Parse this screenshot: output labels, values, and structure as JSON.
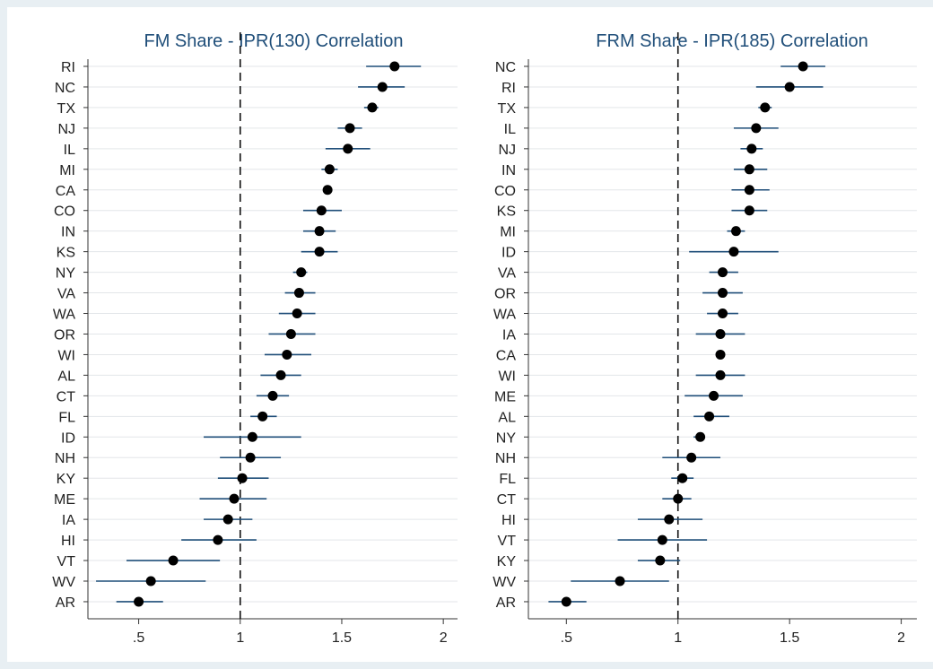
{
  "chart_data": [
    {
      "type": "dot-ci",
      "title": "FM Share - IPR(130) Correlation",
      "xlim": [
        0.25,
        2.07
      ],
      "xticks": [
        0.5,
        1,
        1.5,
        2
      ],
      "xtick_labels": [
        ".5",
        "1",
        "1.5",
        "2"
      ],
      "reference_line": 1,
      "grid": "horizontal",
      "points": [
        {
          "label": "RI",
          "value": 1.76,
          "lo": 1.62,
          "hi": 1.89
        },
        {
          "label": "NC",
          "value": 1.7,
          "lo": 1.58,
          "hi": 1.81
        },
        {
          "label": "TX",
          "value": 1.65,
          "lo": 1.61,
          "hi": 1.68
        },
        {
          "label": "NJ",
          "value": 1.54,
          "lo": 1.48,
          "hi": 1.6
        },
        {
          "label": "IL",
          "value": 1.53,
          "lo": 1.42,
          "hi": 1.64
        },
        {
          "label": "MI",
          "value": 1.44,
          "lo": 1.4,
          "hi": 1.48
        },
        {
          "label": "CA",
          "value": 1.43,
          "lo": 1.41,
          "hi": 1.45
        },
        {
          "label": "CO",
          "value": 1.4,
          "lo": 1.31,
          "hi": 1.5
        },
        {
          "label": "IN",
          "value": 1.39,
          "lo": 1.31,
          "hi": 1.47
        },
        {
          "label": "KS",
          "value": 1.39,
          "lo": 1.3,
          "hi": 1.48
        },
        {
          "label": "NY",
          "value": 1.3,
          "lo": 1.26,
          "hi": 1.33
        },
        {
          "label": "VA",
          "value": 1.29,
          "lo": 1.22,
          "hi": 1.37
        },
        {
          "label": "WA",
          "value": 1.28,
          "lo": 1.19,
          "hi": 1.37
        },
        {
          "label": "OR",
          "value": 1.25,
          "lo": 1.14,
          "hi": 1.37
        },
        {
          "label": "WI",
          "value": 1.23,
          "lo": 1.12,
          "hi": 1.35
        },
        {
          "label": "AL",
          "value": 1.2,
          "lo": 1.1,
          "hi": 1.3
        },
        {
          "label": "CT",
          "value": 1.16,
          "lo": 1.08,
          "hi": 1.24
        },
        {
          "label": "FL",
          "value": 1.11,
          "lo": 1.05,
          "hi": 1.18
        },
        {
          "label": "ID",
          "value": 1.06,
          "lo": 0.82,
          "hi": 1.3
        },
        {
          "label": "NH",
          "value": 1.05,
          "lo": 0.9,
          "hi": 1.2
        },
        {
          "label": "KY",
          "value": 1.01,
          "lo": 0.89,
          "hi": 1.14
        },
        {
          "label": "ME",
          "value": 0.97,
          "lo": 0.8,
          "hi": 1.13
        },
        {
          "label": "IA",
          "value": 0.94,
          "lo": 0.82,
          "hi": 1.06
        },
        {
          "label": "HI",
          "value": 0.89,
          "lo": 0.71,
          "hi": 1.08
        },
        {
          "label": "VT",
          "value": 0.67,
          "lo": 0.44,
          "hi": 0.9
        },
        {
          "label": "WV",
          "value": 0.56,
          "lo": 0.29,
          "hi": 0.83
        },
        {
          "label": "AR",
          "value": 0.5,
          "lo": 0.39,
          "hi": 0.62
        }
      ]
    },
    {
      "type": "dot-ci",
      "title": "FRM Share - IPR(185) Correlation",
      "xlim": [
        0.33,
        2.07
      ],
      "xticks": [
        0.5,
        1,
        1.5,
        2
      ],
      "xtick_labels": [
        ".5",
        "1",
        "1.5",
        "2"
      ],
      "reference_line": 1,
      "grid": "horizontal",
      "points": [
        {
          "label": "NC",
          "value": 1.56,
          "lo": 1.46,
          "hi": 1.66
        },
        {
          "label": "RI",
          "value": 1.5,
          "lo": 1.35,
          "hi": 1.65
        },
        {
          "label": "TX",
          "value": 1.39,
          "lo": 1.36,
          "hi": 1.42
        },
        {
          "label": "IL",
          "value": 1.35,
          "lo": 1.25,
          "hi": 1.45
        },
        {
          "label": "NJ",
          "value": 1.33,
          "lo": 1.28,
          "hi": 1.38
        },
        {
          "label": "IN",
          "value": 1.32,
          "lo": 1.25,
          "hi": 1.4
        },
        {
          "label": "CO",
          "value": 1.32,
          "lo": 1.24,
          "hi": 1.41
        },
        {
          "label": "KS",
          "value": 1.32,
          "lo": 1.24,
          "hi": 1.4
        },
        {
          "label": "MI",
          "value": 1.26,
          "lo": 1.22,
          "hi": 1.3
        },
        {
          "label": "ID",
          "value": 1.25,
          "lo": 1.05,
          "hi": 1.45
        },
        {
          "label": "VA",
          "value": 1.2,
          "lo": 1.14,
          "hi": 1.27
        },
        {
          "label": "OR",
          "value": 1.2,
          "lo": 1.11,
          "hi": 1.29
        },
        {
          "label": "WA",
          "value": 1.2,
          "lo": 1.13,
          "hi": 1.27
        },
        {
          "label": "IA",
          "value": 1.19,
          "lo": 1.08,
          "hi": 1.3
        },
        {
          "label": "CA",
          "value": 1.19,
          "lo": 1.17,
          "hi": 1.21
        },
        {
          "label": "WI",
          "value": 1.19,
          "lo": 1.08,
          "hi": 1.3
        },
        {
          "label": "ME",
          "value": 1.16,
          "lo": 1.03,
          "hi": 1.29
        },
        {
          "label": "AL",
          "value": 1.14,
          "lo": 1.07,
          "hi": 1.23
        },
        {
          "label": "NY",
          "value": 1.1,
          "lo": 1.07,
          "hi": 1.12
        },
        {
          "label": "NH",
          "value": 1.06,
          "lo": 0.93,
          "hi": 1.19
        },
        {
          "label": "FL",
          "value": 1.02,
          "lo": 0.97,
          "hi": 1.07
        },
        {
          "label": "CT",
          "value": 1.0,
          "lo": 0.93,
          "hi": 1.06
        },
        {
          "label": "HI",
          "value": 0.96,
          "lo": 0.82,
          "hi": 1.11
        },
        {
          "label": "VT",
          "value": 0.93,
          "lo": 0.73,
          "hi": 1.13
        },
        {
          "label": "KY",
          "value": 0.92,
          "lo": 0.82,
          "hi": 1.01
        },
        {
          "label": "WV",
          "value": 0.74,
          "lo": 0.52,
          "hi": 0.96
        },
        {
          "label": "AR",
          "value": 0.5,
          "lo": 0.42,
          "hi": 0.59
        }
      ]
    }
  ]
}
